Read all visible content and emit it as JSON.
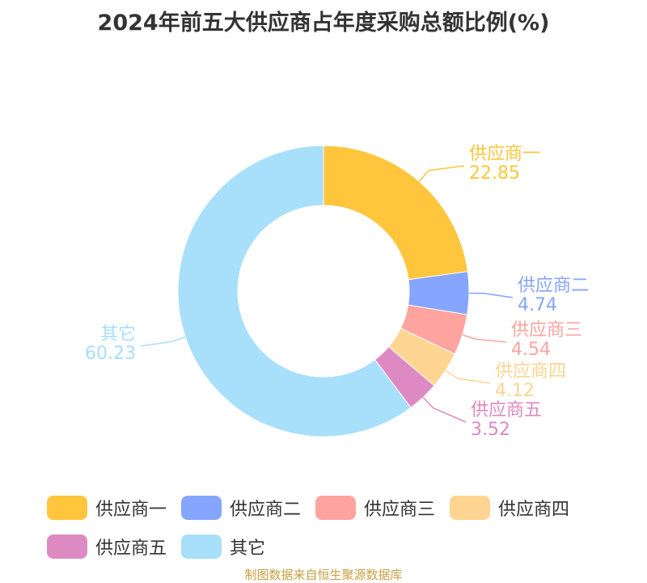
{
  "title": "2024年前五大供应商占年度采购总额比例(%)",
  "footer": "制图数据来自恒生聚源数据库",
  "chart_data": {
    "type": "pie",
    "variant": "donut",
    "title": "2024年前五大供应商占年度采购总额比例(%)",
    "start_angle_deg": 90,
    "direction": "clockwise",
    "slices": [
      {
        "label": "供应商一",
        "value": 22.85,
        "value_text": "22.85",
        "color": "#ffc53d"
      },
      {
        "label": "供应商二",
        "value": 4.74,
        "value_text": "4.74",
        "color": "#85a5ff"
      },
      {
        "label": "供应商三",
        "value": 4.54,
        "value_text": "4.54",
        "color": "#ffa39e"
      },
      {
        "label": "供应商四",
        "value": 4.12,
        "value_text": "4.12",
        "color": "#ffd591"
      },
      {
        "label": "供应商五",
        "value": 3.52,
        "value_text": "3.52",
        "color": "#de8ac2"
      },
      {
        "label": "其它",
        "value": 60.23,
        "value_text": "60.23",
        "color": "#a8dffa"
      }
    ],
    "legend_position": "bottom"
  }
}
